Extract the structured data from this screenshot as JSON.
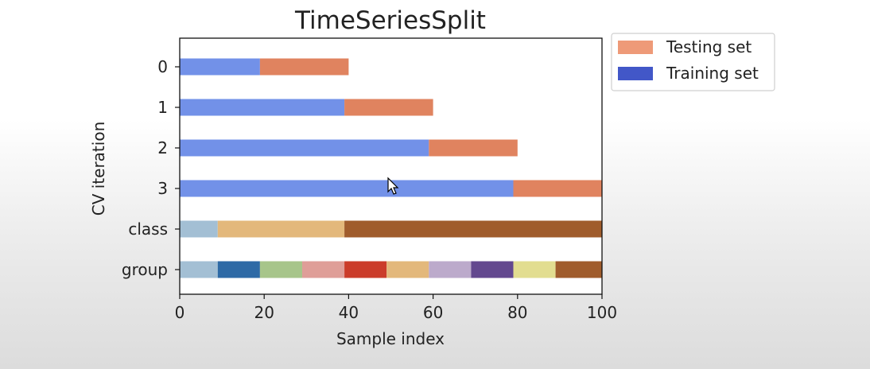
{
  "chart_data": {
    "type": "bar",
    "title": "TimeSeriesSplit",
    "xlabel": "Sample index",
    "ylabel": "CV iteration",
    "xlim": [
      0,
      100
    ],
    "xticks": [
      "0",
      "20",
      "40",
      "60",
      "80",
      "100"
    ],
    "row_labels": [
      "0",
      "1",
      "2",
      "3",
      "class",
      "group"
    ],
    "legend": {
      "placement": "outside-top-right",
      "entries": [
        {
          "label": "Testing set",
          "color": "#ee9a78"
        },
        {
          "label": "Training set",
          "color": "#4257c8"
        }
      ]
    },
    "splits": [
      {
        "iteration": "0",
        "train": [
          0,
          19
        ],
        "test": [
          19,
          40
        ]
      },
      {
        "iteration": "1",
        "train": [
          0,
          39
        ],
        "test": [
          39,
          60
        ]
      },
      {
        "iteration": "2",
        "train": [
          0,
          59
        ],
        "test": [
          59,
          80
        ]
      },
      {
        "iteration": "3",
        "train": [
          0,
          79
        ],
        "test": [
          79,
          100
        ]
      }
    ],
    "colors": {
      "train_bar": "#7291e8",
      "test_bar": "#e0835f"
    },
    "class_segments": [
      {
        "start": 0,
        "end": 9,
        "color": "#a3bfd4"
      },
      {
        "start": 9,
        "end": 39,
        "color": "#e3b87b"
      },
      {
        "start": 39,
        "end": 100,
        "color": "#a05c2c"
      }
    ],
    "group_segments": [
      {
        "start": 0,
        "end": 9,
        "color": "#a3bfd4"
      },
      {
        "start": 9,
        "end": 19,
        "color": "#2e6aa6"
      },
      {
        "start": 19,
        "end": 29,
        "color": "#a7c58a"
      },
      {
        "start": 29,
        "end": 39,
        "color": "#df9e98"
      },
      {
        "start": 39,
        "end": 49,
        "color": "#cb3c2a"
      },
      {
        "start": 49,
        "end": 59,
        "color": "#e3b87b"
      },
      {
        "start": 59,
        "end": 69,
        "color": "#bcaacb"
      },
      {
        "start": 69,
        "end": 79,
        "color": "#63488f"
      },
      {
        "start": 79,
        "end": 89,
        "color": "#e2dd90"
      },
      {
        "start": 89,
        "end": 100,
        "color": "#a05c2c"
      }
    ]
  }
}
